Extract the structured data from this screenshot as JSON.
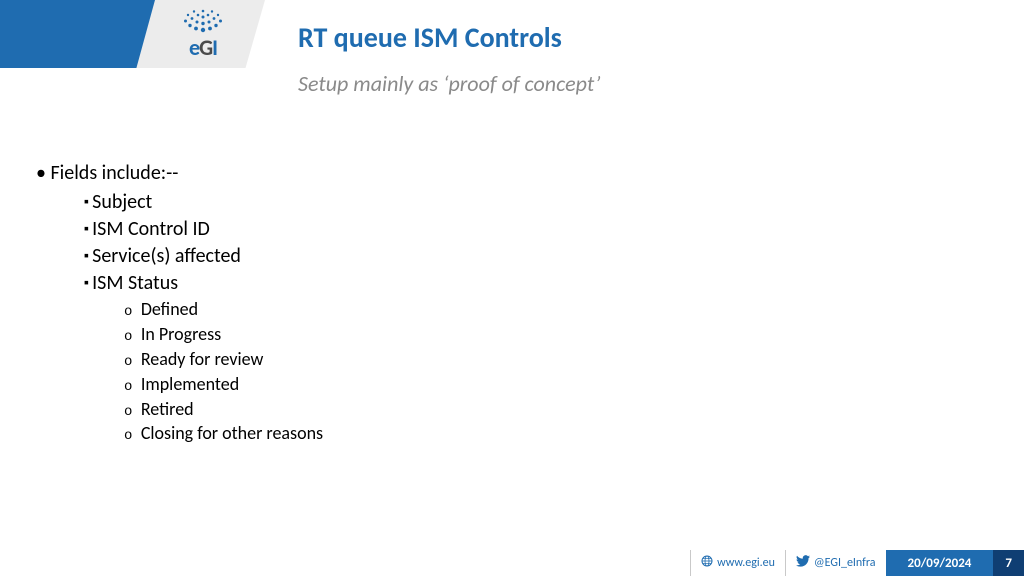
{
  "colors": {
    "brand_blue": "#1f6cb0",
    "dark_blue": "#0f3e73",
    "grey_text": "#8a8a8a",
    "header_grey": "#ececec"
  },
  "logo": {
    "text": "eGI"
  },
  "title": {
    "text": "RT queue ISM Controls",
    "color": "#1f6cb0",
    "fontsize": 28
  },
  "subtitle": {
    "text": "Setup mainly as ‘proof of concept’",
    "color": "#8a8a8a",
    "fontsize": 22
  },
  "content": {
    "heading": "Fields include:--",
    "fields": [
      {
        "label": "Subject"
      },
      {
        "label": "ISM Control ID"
      },
      {
        "label": "Service(s) affected"
      },
      {
        "label": "ISM Status",
        "sub": [
          "Defined",
          "In Progress",
          "Ready for review",
          "Implemented",
          "Retired",
          "Closing for other reasons"
        ]
      }
    ]
  },
  "footer": {
    "website": "www.egi.eu",
    "twitter": "@EGI_eInfra",
    "date": "20/09/2024",
    "page": "7"
  }
}
